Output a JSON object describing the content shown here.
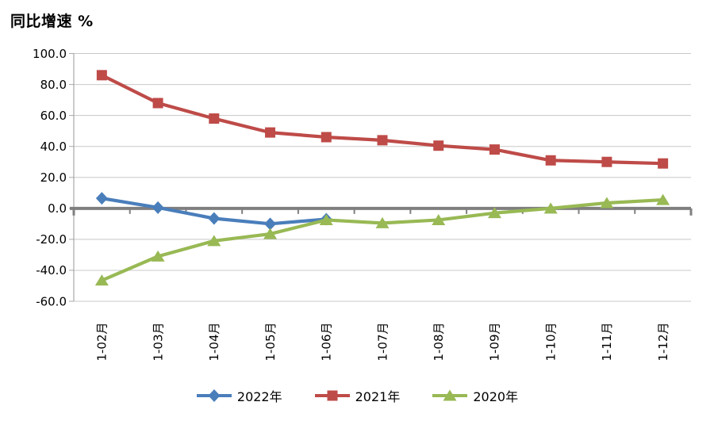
{
  "title": "同比增速 %",
  "chart_data": {
    "type": "line",
    "title": "同比增速 %",
    "xlabel": "",
    "ylabel": "",
    "categories": [
      "1-02月",
      "1-03月",
      "1-04月",
      "1-05月",
      "1-06月",
      "1-07月",
      "1-08月",
      "1-09月",
      "1-10月",
      "1-11月",
      "1-12月"
    ],
    "series": [
      {
        "name": "2022年",
        "color": "#4A7EBB",
        "marker": "diamond",
        "values": [
          6.5,
          0.5,
          -6.5,
          -10.0,
          -7.0,
          null,
          null,
          null,
          null,
          null,
          null
        ]
      },
      {
        "name": "2021年",
        "color": "#BE4B48",
        "marker": "square",
        "values": [
          86.0,
          68.0,
          58.0,
          49.0,
          46.0,
          44.0,
          40.5,
          38.0,
          31.0,
          30.0,
          29.0
        ]
      },
      {
        "name": "2020年",
        "color": "#98B954",
        "marker": "triangle",
        "values": [
          -46.5,
          -31.0,
          -21.0,
          -16.5,
          -7.5,
          -9.5,
          -7.5,
          -3.0,
          0.0,
          3.5,
          5.5
        ]
      }
    ],
    "ylim": [
      -60,
      100
    ],
    "ytick_step": 20,
    "ytick_labels": [
      "100.0",
      "80.0",
      "60.0",
      "40.0",
      "20.0",
      "0.0",
      "-20.0",
      "-40.0",
      "-60.0"
    ],
    "grid": true,
    "legend_position": "bottom"
  },
  "colors": {
    "background": "#FFFFFF",
    "grid_line": "#C8C8C8",
    "axis_line": "#A8A8A8",
    "zero_line": "#7F7F7F",
    "text": "#000000",
    "series_blue": "#4A7EBB",
    "series_red": "#BE4B48",
    "series_green": "#98B954"
  }
}
